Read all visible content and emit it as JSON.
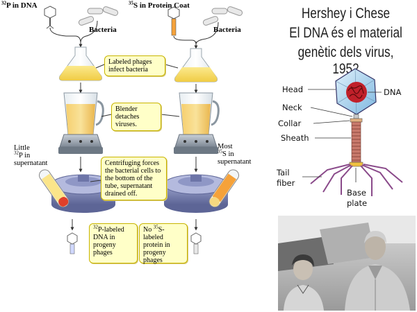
{
  "experiment": {
    "left_label": {
      "isotope": "32",
      "rest": "P in DNA"
    },
    "right_label": {
      "isotope": "35",
      "rest": "S in Protein Coat"
    },
    "bacteria_left": "Bacteria",
    "bacteria_right": "Bacteria",
    "note_infect": "Labeled phages infect bacteria",
    "note_blender": "Blender detaches viruses.",
    "note_centrifuge": "Centrifuging forces the bacterial cells to the bottom of the tube, supernatant drained off.",
    "little_label": {
      "line1": "Little",
      "isotope": "32",
      "line2": "P in",
      "line3": "supernatant"
    },
    "most_label": {
      "line1": "Most",
      "isotope": "35",
      "line2": "S in",
      "line3": "supernatant"
    },
    "result_left": {
      "isotope": "32",
      "text": "P-labeled DNA in progeny phages"
    },
    "result_right": {
      "prefix": "No ",
      "isotope": "35",
      "text": "S-labeled protein in progeny phages"
    }
  },
  "title": {
    "line1": "Hershey i Chese",
    "line2": "El DNA és el material",
    "line3": "genètic dels virus, 1952"
  },
  "phage_parts": {
    "head": "Head",
    "dna": "DNA",
    "neck": "Neck",
    "collar": "Collar",
    "sheath": "Sheath",
    "tail_fiber_1": "Tail",
    "tail_fiber_2": "fiber",
    "base_plate_1": "Base",
    "base_plate_2": "plate"
  },
  "colors": {
    "note_bg": "#ffffc8",
    "note_border": "#c8b400",
    "liquid_yellow": "#f3d660",
    "p32_red": "#e0402a",
    "s35_orange": "#f5a23a",
    "centrifuge_blue": "#7f88b8",
    "phage_head": "#a9d4f0",
    "sheath": "#c97a6c",
    "tail_fiber": "#8a4a8a"
  }
}
